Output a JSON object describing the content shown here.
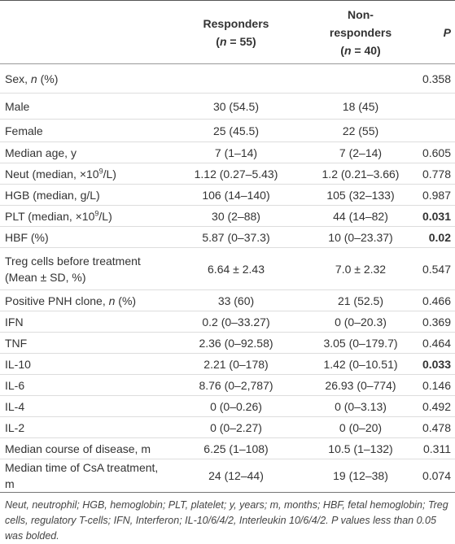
{
  "table": {
    "header": {
      "responders": [
        "Responders",
        [
          "(",
          {
            "text": "n",
            "italic": true
          },
          " = 55)"
        ]
      ],
      "nonresponders": [
        "Non-",
        "responders",
        [
          "(",
          {
            "text": "n",
            "italic": true
          },
          " = 40)"
        ]
      ],
      "p": [
        [
          {
            "text": "P",
            "italic": true
          }
        ]
      ]
    },
    "rows": [
      {
        "label": [
          "Sex, ",
          {
            "text": "n",
            "italic": true
          },
          " (%)"
        ],
        "responders": "",
        "nonresponders": "",
        "p": "0.358"
      },
      {
        "label": "Male",
        "responders": "30 (54.5)",
        "nonresponders": "18 (45)",
        "p": ""
      },
      {
        "label": "Female",
        "responders": "25 (45.5)",
        "nonresponders": "22 (55)",
        "p": ""
      },
      {
        "label": "Median age, y",
        "responders": "7 (1–14)",
        "nonresponders": "7 (2–14)",
        "p": "0.605"
      },
      {
        "label": [
          "Neut (median, ×10",
          {
            "text": "9",
            "sup": true
          },
          "/L)"
        ],
        "responders": "1.12 (0.27–5.43)",
        "nonresponders": "1.2 (0.21–3.66)",
        "p": "0.778"
      },
      {
        "label": "HGB (median, g/L)",
        "responders": "106 (14–140)",
        "nonresponders": "105 (32–133)",
        "p": "0.987"
      },
      {
        "label": [
          "PLT (median, ×10",
          {
            "text": "9",
            "sup": true
          },
          "/L)"
        ],
        "responders": "30 (2–88)",
        "nonresponders": "44 (14–82)",
        "p": "0.031",
        "p_bold": true
      },
      {
        "label": "HBF (%)",
        "responders": "5.87 (0–37.3)",
        "nonresponders": "10 (0–23.37)",
        "p": "0.02",
        "p_bold": true
      },
      {
        "label": "Treg cells before treatment (Mean ± SD, %)",
        "responders": "6.64 ± 2.43",
        "nonresponders": "7.0 ± 2.32",
        "p": "0.547"
      },
      {
        "label": [
          "Positive PNH clone, ",
          {
            "text": "n",
            "italic": true
          },
          " (%)"
        ],
        "responders": "33 (60)",
        "nonresponders": "21 (52.5)",
        "p": "0.466"
      },
      {
        "label": "IFN",
        "responders": "0.2 (0–33.27)",
        "nonresponders": "0 (0–20.3)",
        "p": "0.369"
      },
      {
        "label": "TNF",
        "responders": "2.36 (0–92.58)",
        "nonresponders": "3.05 (0–179.7)",
        "p": "0.464"
      },
      {
        "label": "IL-10",
        "responders": "2.21 (0–178)",
        "nonresponders": "1.42 (0–10.51)",
        "p": "0.033",
        "p_bold": true
      },
      {
        "label": "IL-6",
        "responders": "8.76 (0–2,787)",
        "nonresponders": "26.93 (0–774)",
        "p": "0.146"
      },
      {
        "label": "IL-4",
        "responders": "0 (0–0.26)",
        "nonresponders": "0 (0–3.13)",
        "p": "0.492"
      },
      {
        "label": "IL-2",
        "responders": "0 (0–2.27)",
        "nonresponders": "0 (0–20)",
        "p": "0.478"
      },
      {
        "label": "Median course of disease, m",
        "responders": "6.25 (1–108)",
        "nonresponders": "10.5 (1–132)",
        "p": "0.311"
      },
      {
        "label": "Median time of CsA treatment, m",
        "responders": "24 (12–44)",
        "nonresponders": "19 (12–38)",
        "p": "0.074"
      }
    ],
    "footnote": "Neut, neutrophil; HGB, hemoglobin; PLT, platelet; y, years; m, months; HBF, fetal hemoglobin; Treg cells, regulatory T-cells; IFN, Interferon; IL-10/6/4/2, Interleukin 10/6/4/2. P values less than 0.05 was bolded."
  }
}
